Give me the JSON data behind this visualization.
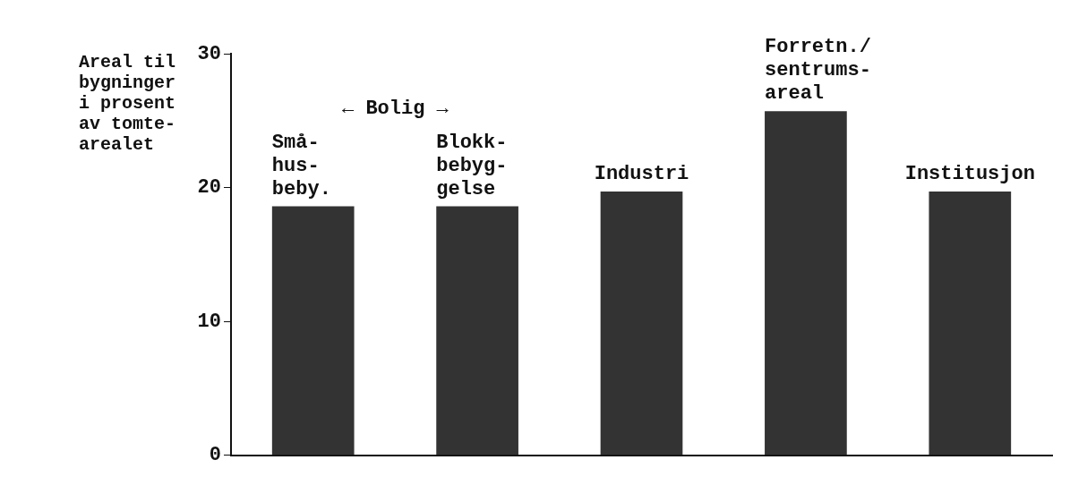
{
  "chart_data": {
    "type": "bar",
    "ylabel": "Areal til\nbygninger\ni prosent\nav tomte-\narealet",
    "categories": [
      "Små-\nhus-\nbeby.",
      "Blokk-\nbebyg-\ngelse",
      "Industri",
      "Forretn./\nsentrums-\nareal",
      "Institusjon"
    ],
    "values": [
      18.6,
      18.6,
      19.7,
      25.7,
      19.7
    ],
    "color": "#333333",
    "ylim": [
      0,
      30
    ],
    "yticks": [
      0,
      10,
      20,
      30
    ],
    "annotations": [
      "← Bolig →"
    ]
  }
}
